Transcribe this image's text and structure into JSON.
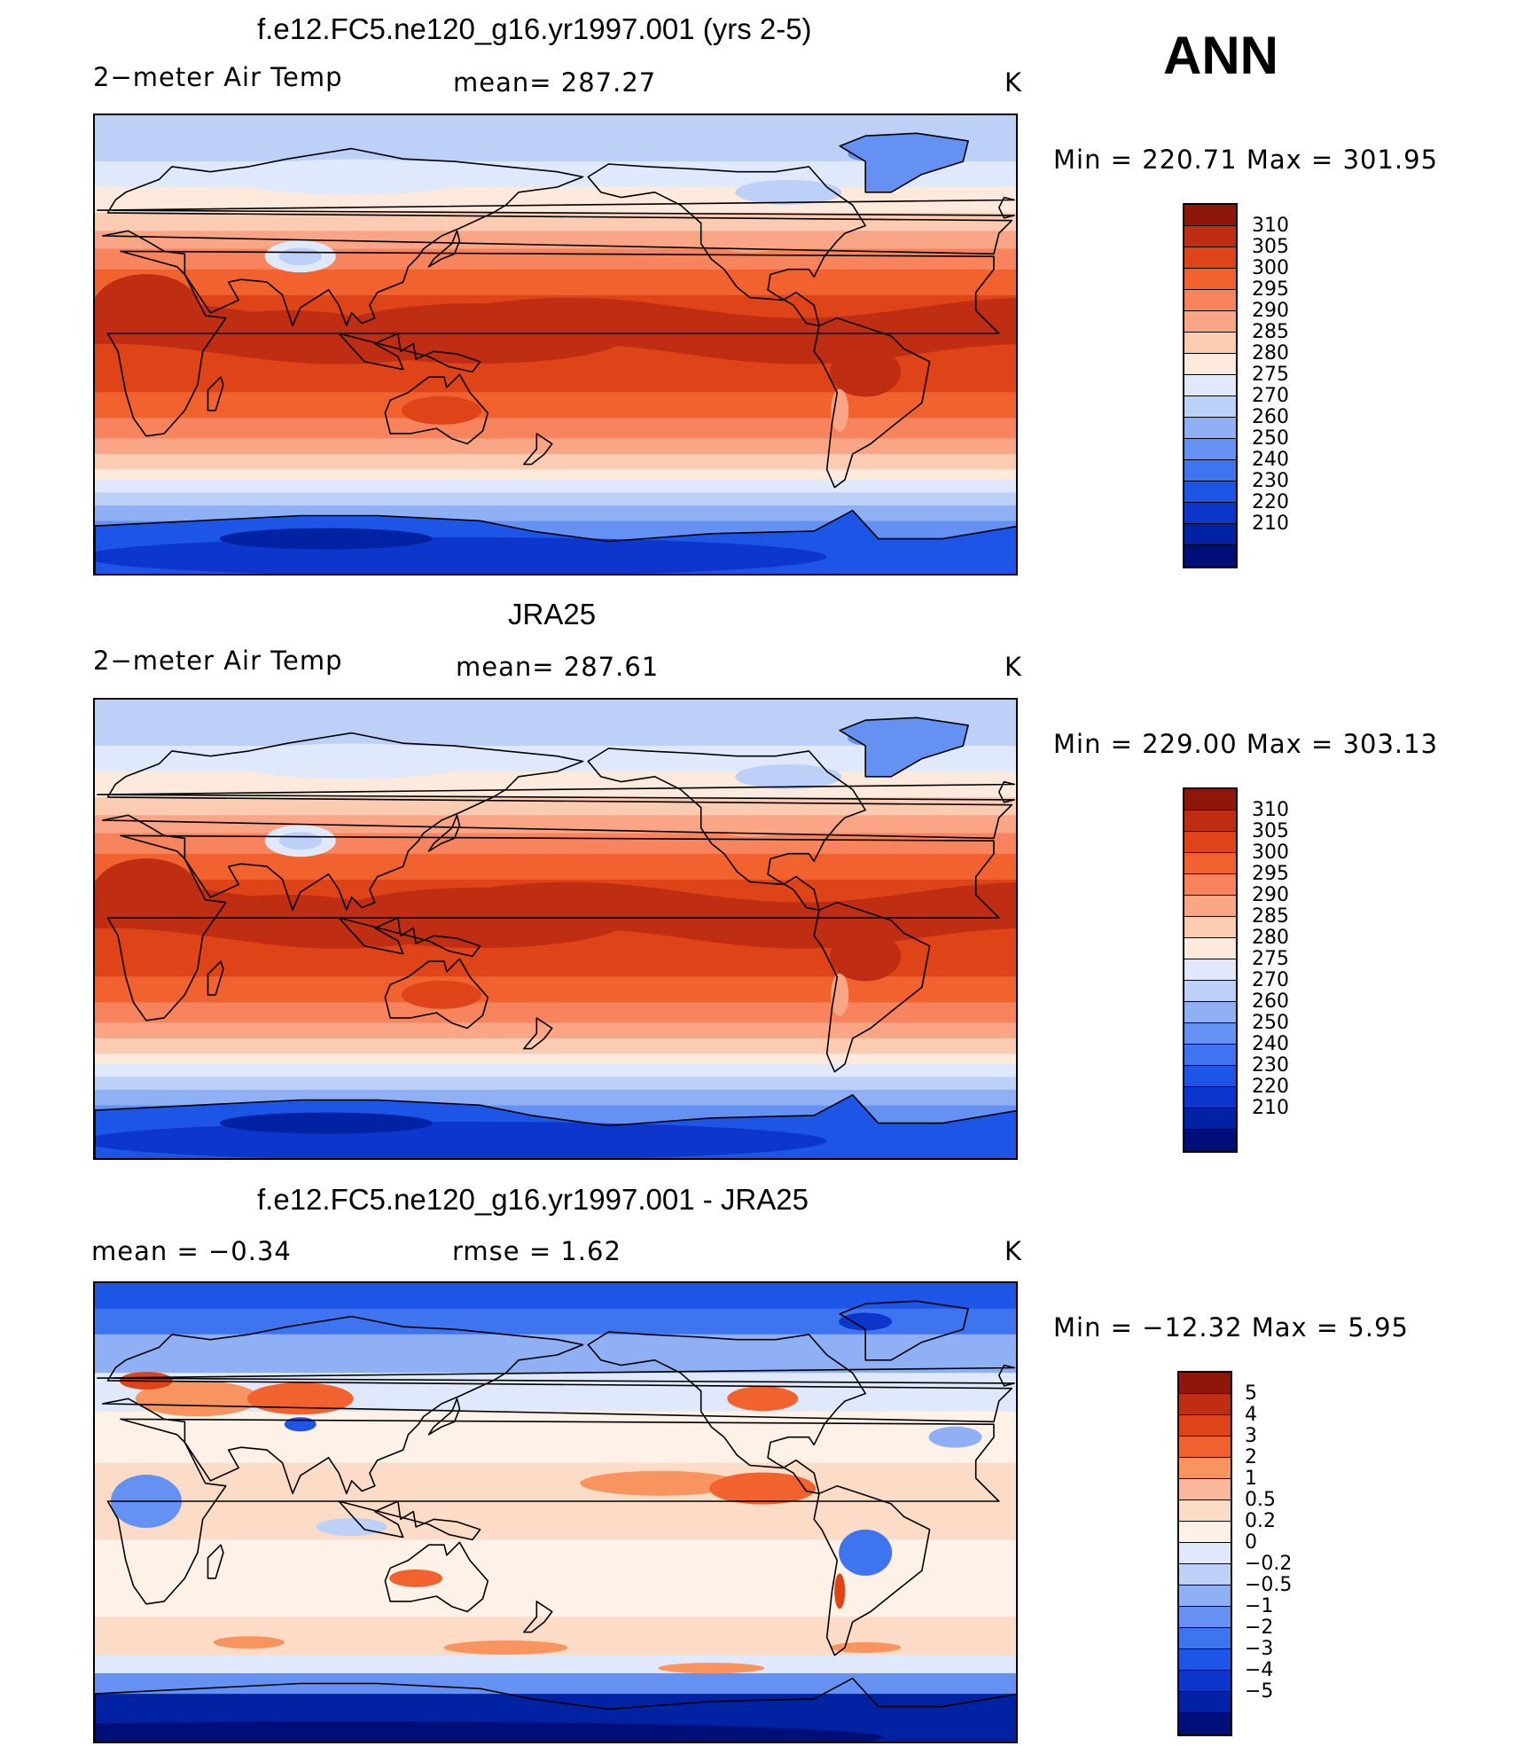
{
  "season": "ANN",
  "units": "K",
  "palettes": {
    "temp": [
      "#000e7a",
      "#0022a3",
      "#0d37cc",
      "#1d55e6",
      "#3f74f0",
      "#6592f2",
      "#8fb0f5",
      "#bcd0f8",
      "#dfe9fb",
      "#fdeadd",
      "#fcccb2",
      "#f9a586",
      "#f7845c",
      "#f2622f",
      "#de4417",
      "#bf2d12",
      "#8e1709"
    ],
    "diff": [
      "#000e7a",
      "#0022a3",
      "#0d37cc",
      "#1d55e6",
      "#3f74f0",
      "#6592f2",
      "#8fb0f5",
      "#bcd0f8",
      "#dfe9fb",
      "#fdf1e8",
      "#fcdcc6",
      "#f9b89b",
      "#f7945f",
      "#f2622f",
      "#de4417",
      "#bf2d12",
      "#8e1709"
    ]
  },
  "panels": [
    {
      "title": "f.e12.FC5.ne120_g16.yr1997.001 (yrs 2-5)",
      "left_label": "2−meter Air Temp",
      "mid_label": "mean=  287.27",
      "units": "K",
      "minmax": "Min  =  220.71  Max  =  301.95",
      "legend": [
        "310",
        "305",
        "300",
        "295",
        "290",
        "285",
        "280",
        "275",
        "270",
        "260",
        "250",
        "240",
        "230",
        "220",
        "210"
      ],
      "palette": "temp",
      "field": {
        "eq": 13,
        "land_warm": 1,
        "tibet": 5,
        "ant": 1
      }
    },
    {
      "title": "JRA25",
      "left_label": "2−meter Air Temp",
      "mid_label": "mean=  287.61",
      "units": "K",
      "minmax": "Min  =  229.00  Max  =  303.13",
      "legend": [
        "310",
        "305",
        "300",
        "295",
        "290",
        "285",
        "280",
        "275",
        "270",
        "260",
        "250",
        "240",
        "230",
        "220",
        "210"
      ],
      "palette": "temp",
      "field": {
        "eq": 13,
        "land_warm": 2,
        "tibet": 6,
        "ant": 2
      }
    },
    {
      "title": "f.e12.FC5.ne120_g16.yr1997.001 - JRA25",
      "left_label": "mean  =     −0.34",
      "mid_label": "rmse  =      1.62",
      "units": "K",
      "minmax": "Min  =  −12.32  Max  =       5.95",
      "legend": [
        "5",
        "4",
        "3",
        "2",
        "1",
        "0.5",
        "0.2",
        "0",
        "−0.2",
        "−0.5",
        "−1",
        "−2",
        "−3",
        "−4",
        "−5"
      ],
      "palette": "diff",
      "field": {
        "diff": true
      }
    }
  ]
}
